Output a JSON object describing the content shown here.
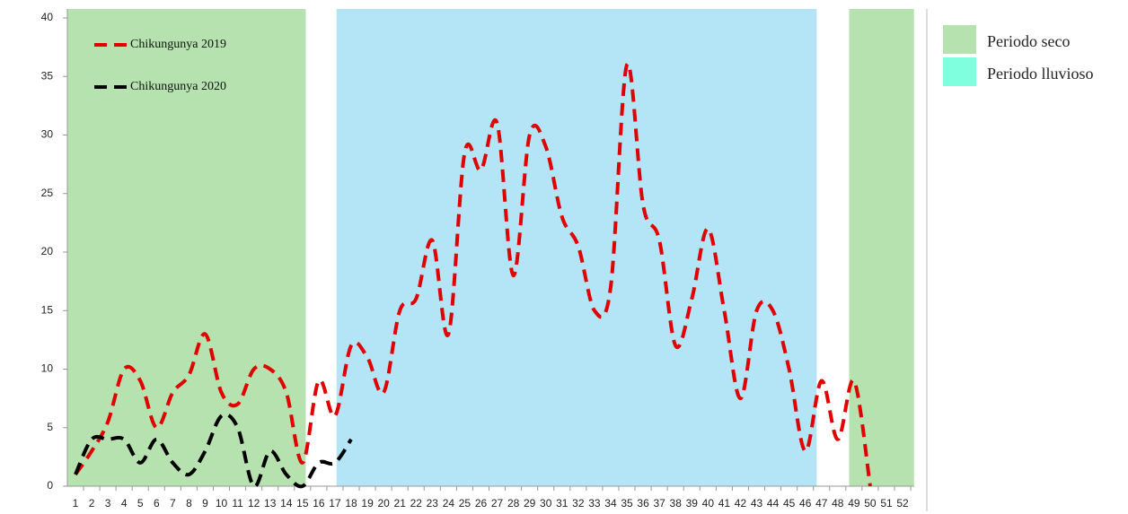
{
  "chart_data": {
    "type": "line",
    "categories": [
      "1",
      "2",
      "3",
      "4",
      "5",
      "6",
      "7",
      "8",
      "9",
      "10",
      "11",
      "12",
      "13",
      "14",
      "15",
      "16",
      "17",
      "18",
      "19",
      "20",
      "21",
      "22",
      "23",
      "24",
      "25",
      "26",
      "27",
      "28",
      "29",
      "30",
      "31",
      "32",
      "33",
      "34",
      "35",
      "36",
      "37",
      "38",
      "39",
      "40",
      "41",
      "42",
      "43",
      "44",
      "45",
      "46",
      "47",
      "48",
      "49",
      "50",
      "51",
      "52"
    ],
    "series": [
      {
        "name": "Chikungunya 2019",
        "color": "#e00000",
        "values": [
          1,
          3,
          5.5,
          10,
          9,
          5,
          8,
          9.5,
          13,
          8,
          7,
          10,
          10,
          8,
          2,
          9,
          6,
          12,
          11,
          8,
          15,
          16,
          21,
          13,
          28.5,
          27,
          31,
          18,
          30,
          29,
          23,
          20.5,
          15,
          17,
          36,
          24,
          21,
          12,
          16,
          22,
          15,
          7.5,
          15,
          15,
          10,
          3,
          9,
          4,
          9,
          0,
          null,
          null
        ]
      },
      {
        "name": "Chikungunya 2020",
        "color": "#000000",
        "values": [
          1,
          4,
          4,
          4,
          2,
          4,
          2,
          1,
          3,
          6,
          5,
          0,
          3,
          1,
          0,
          2,
          2,
          4,
          null,
          null,
          null,
          null,
          null,
          null,
          null,
          null,
          null,
          null,
          null,
          null,
          null,
          null,
          null,
          null,
          null,
          null,
          null,
          null,
          null,
          null,
          null,
          null,
          null,
          null,
          null,
          null,
          null,
          null,
          null,
          null,
          null,
          null
        ]
      }
    ],
    "periods": [
      {
        "name": "Periodo seco",
        "color": "#b6e2b0",
        "legend_color": "#b6e2b0",
        "ranges": [
          [
            0.5,
            15.2
          ],
          [
            48.7,
            52.7
          ]
        ]
      },
      {
        "name": "Periodo lluvioso",
        "color": "#b3e5f7",
        "legend_color": "#80ffdf",
        "ranges": [
          [
            17.1,
            46.7
          ]
        ]
      }
    ],
    "ylim": [
      0,
      40
    ],
    "yticks": [
      0,
      5,
      10,
      15,
      20,
      25,
      30,
      35,
      40
    ],
    "grid": false
  }
}
